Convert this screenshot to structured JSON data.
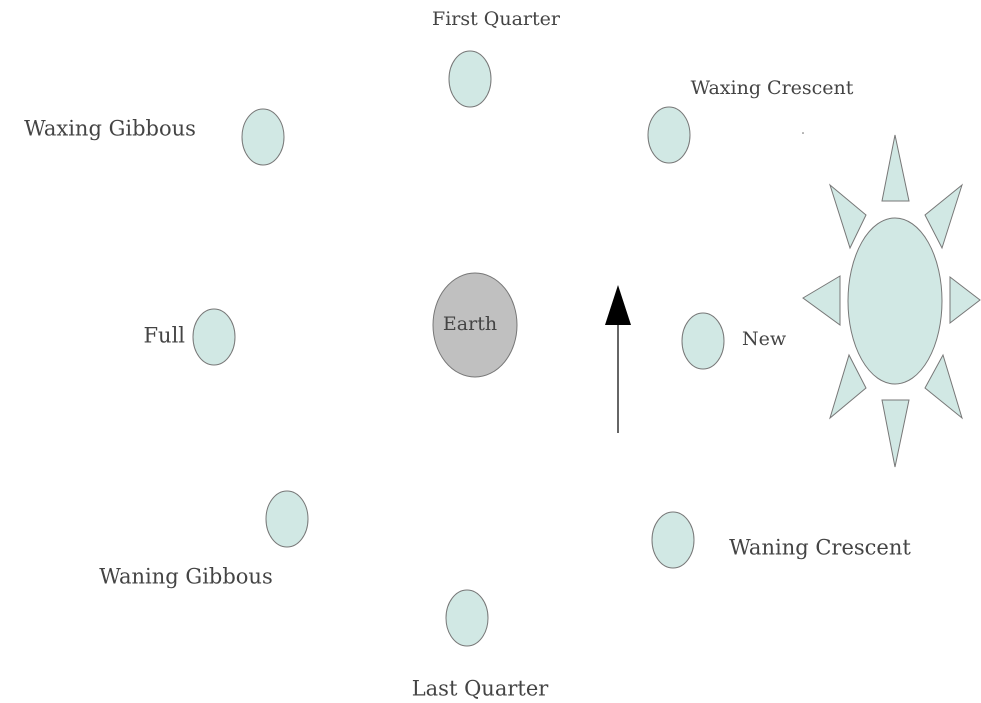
{
  "center": {
    "label": "Earth"
  },
  "nodes": [
    {
      "label": "First Quarter"
    },
    {
      "label": "Waxing Crescent"
    },
    {
      "label": "Waxing Gibbous"
    },
    {
      "label": "Full"
    },
    {
      "label": "New"
    },
    {
      "label": "Waning Gibbous"
    },
    {
      "label": "Waning Crescent"
    },
    {
      "label": "Last Quarter"
    }
  ]
}
